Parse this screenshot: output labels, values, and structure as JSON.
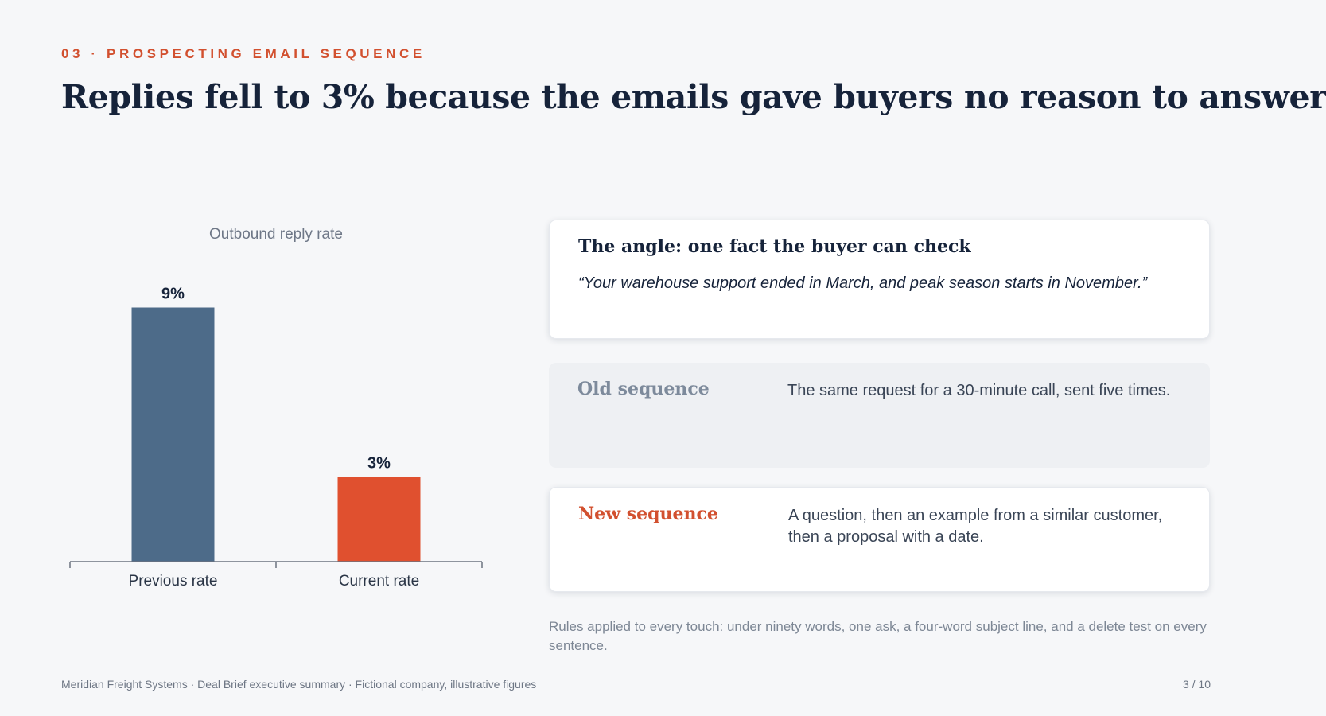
{
  "header": {
    "eyebrow": "03 · PROSPECTING EMAIL SEQUENCE",
    "headline": "Replies fell to 3% because the emails gave buyers no reason to answer"
  },
  "chart_data": {
    "type": "bar",
    "title": "Outbound reply rate",
    "categories": [
      "Previous rate",
      "Current rate"
    ],
    "values": [
      9,
      3
    ],
    "value_labels": [
      "9%",
      "3%"
    ],
    "colors": [
      "#4d6b89",
      "#e0502f"
    ],
    "ylim": [
      0,
      10
    ],
    "grid": false,
    "legend": "none"
  },
  "angle_card": {
    "title": "The angle: one fact the buyer can check",
    "quote": "“Your warehouse support ended in March, and peak season starts in November.”"
  },
  "sequences": {
    "old": {
      "label": "Old sequence",
      "text": "The same request for a 30-minute call, sent five times."
    },
    "new": {
      "label": "New sequence",
      "text": "A question, then an example from a similar customer, then a proposal with a date."
    }
  },
  "rules_note": "Rules applied to every touch: under ninety words, one ask, a four-word subject line, and a delete test on every sentence.",
  "footer": {
    "source": "Meridian Freight Systems · Deal Brief executive summary · Fictional company, illustrative figures",
    "page": "3 / 10"
  },
  "colors": {
    "accent": "#d2502f",
    "navy": "#16233a",
    "previous_bar": "#4d6b89",
    "current_bar": "#e0502f"
  }
}
